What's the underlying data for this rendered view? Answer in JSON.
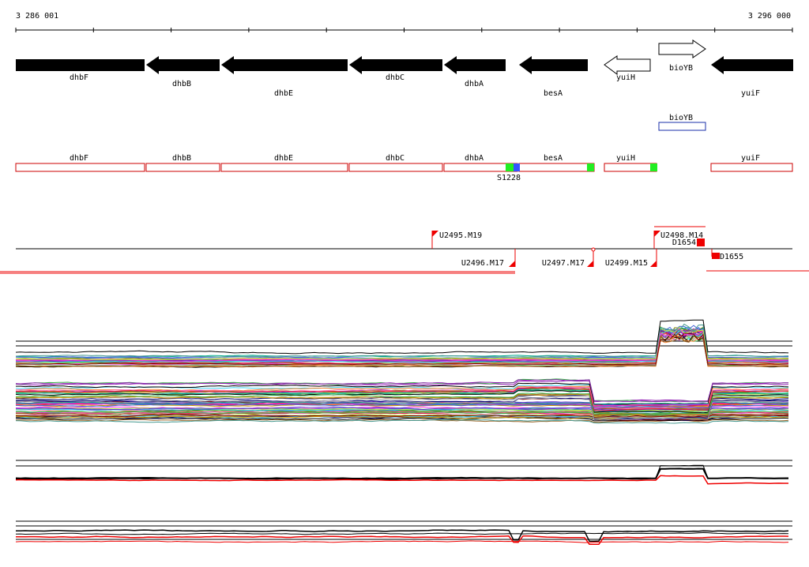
{
  "ruler": {
    "start_label": "3 286 001",
    "end_label": "3 296 000"
  },
  "genes": [
    {
      "name": "dhbF",
      "strand": "-",
      "filled": true
    },
    {
      "name": "dhbB",
      "strand": "-",
      "filled": true
    },
    {
      "name": "dhbE",
      "strand": "-",
      "filled": true
    },
    {
      "name": "dhbC",
      "strand": "-",
      "filled": true
    },
    {
      "name": "dhbA",
      "strand": "-",
      "filled": true
    },
    {
      "name": "besA",
      "strand": "-",
      "filled": true
    },
    {
      "name": "yuiH",
      "strand": "-",
      "filled": false
    },
    {
      "name": "bioYB",
      "strand": "+",
      "filled": false
    },
    {
      "name": "yuiF",
      "strand": "-",
      "filled": true
    }
  ],
  "box_row_upper": [
    {
      "name": "bioYB"
    }
  ],
  "box_row_lower": [
    {
      "name": "dhbF"
    },
    {
      "name": "dhbB"
    },
    {
      "name": "dhbE"
    },
    {
      "name": "dhbC"
    },
    {
      "name": "dhbA"
    },
    {
      "name": "besA"
    },
    {
      "name": "yuiH"
    },
    {
      "name": "yuiF"
    }
  ],
  "feature_label": "S1228",
  "markers": [
    {
      "label": "U2495.M19"
    },
    {
      "label": "U2498.M14"
    },
    {
      "label": "D1654"
    },
    {
      "label": "D1655"
    },
    {
      "label": "U2496.M17"
    },
    {
      "label": "U2497.M17"
    },
    {
      "label": "U2499.M15"
    }
  ],
  "colors": {
    "gene_fill": "#000000",
    "box_red": "#cc0000",
    "box_blue": "#1a2fa8",
    "feature_green": "#22ee22",
    "feature_blue": "#3355ff",
    "marker_red": "#ee0000"
  }
}
